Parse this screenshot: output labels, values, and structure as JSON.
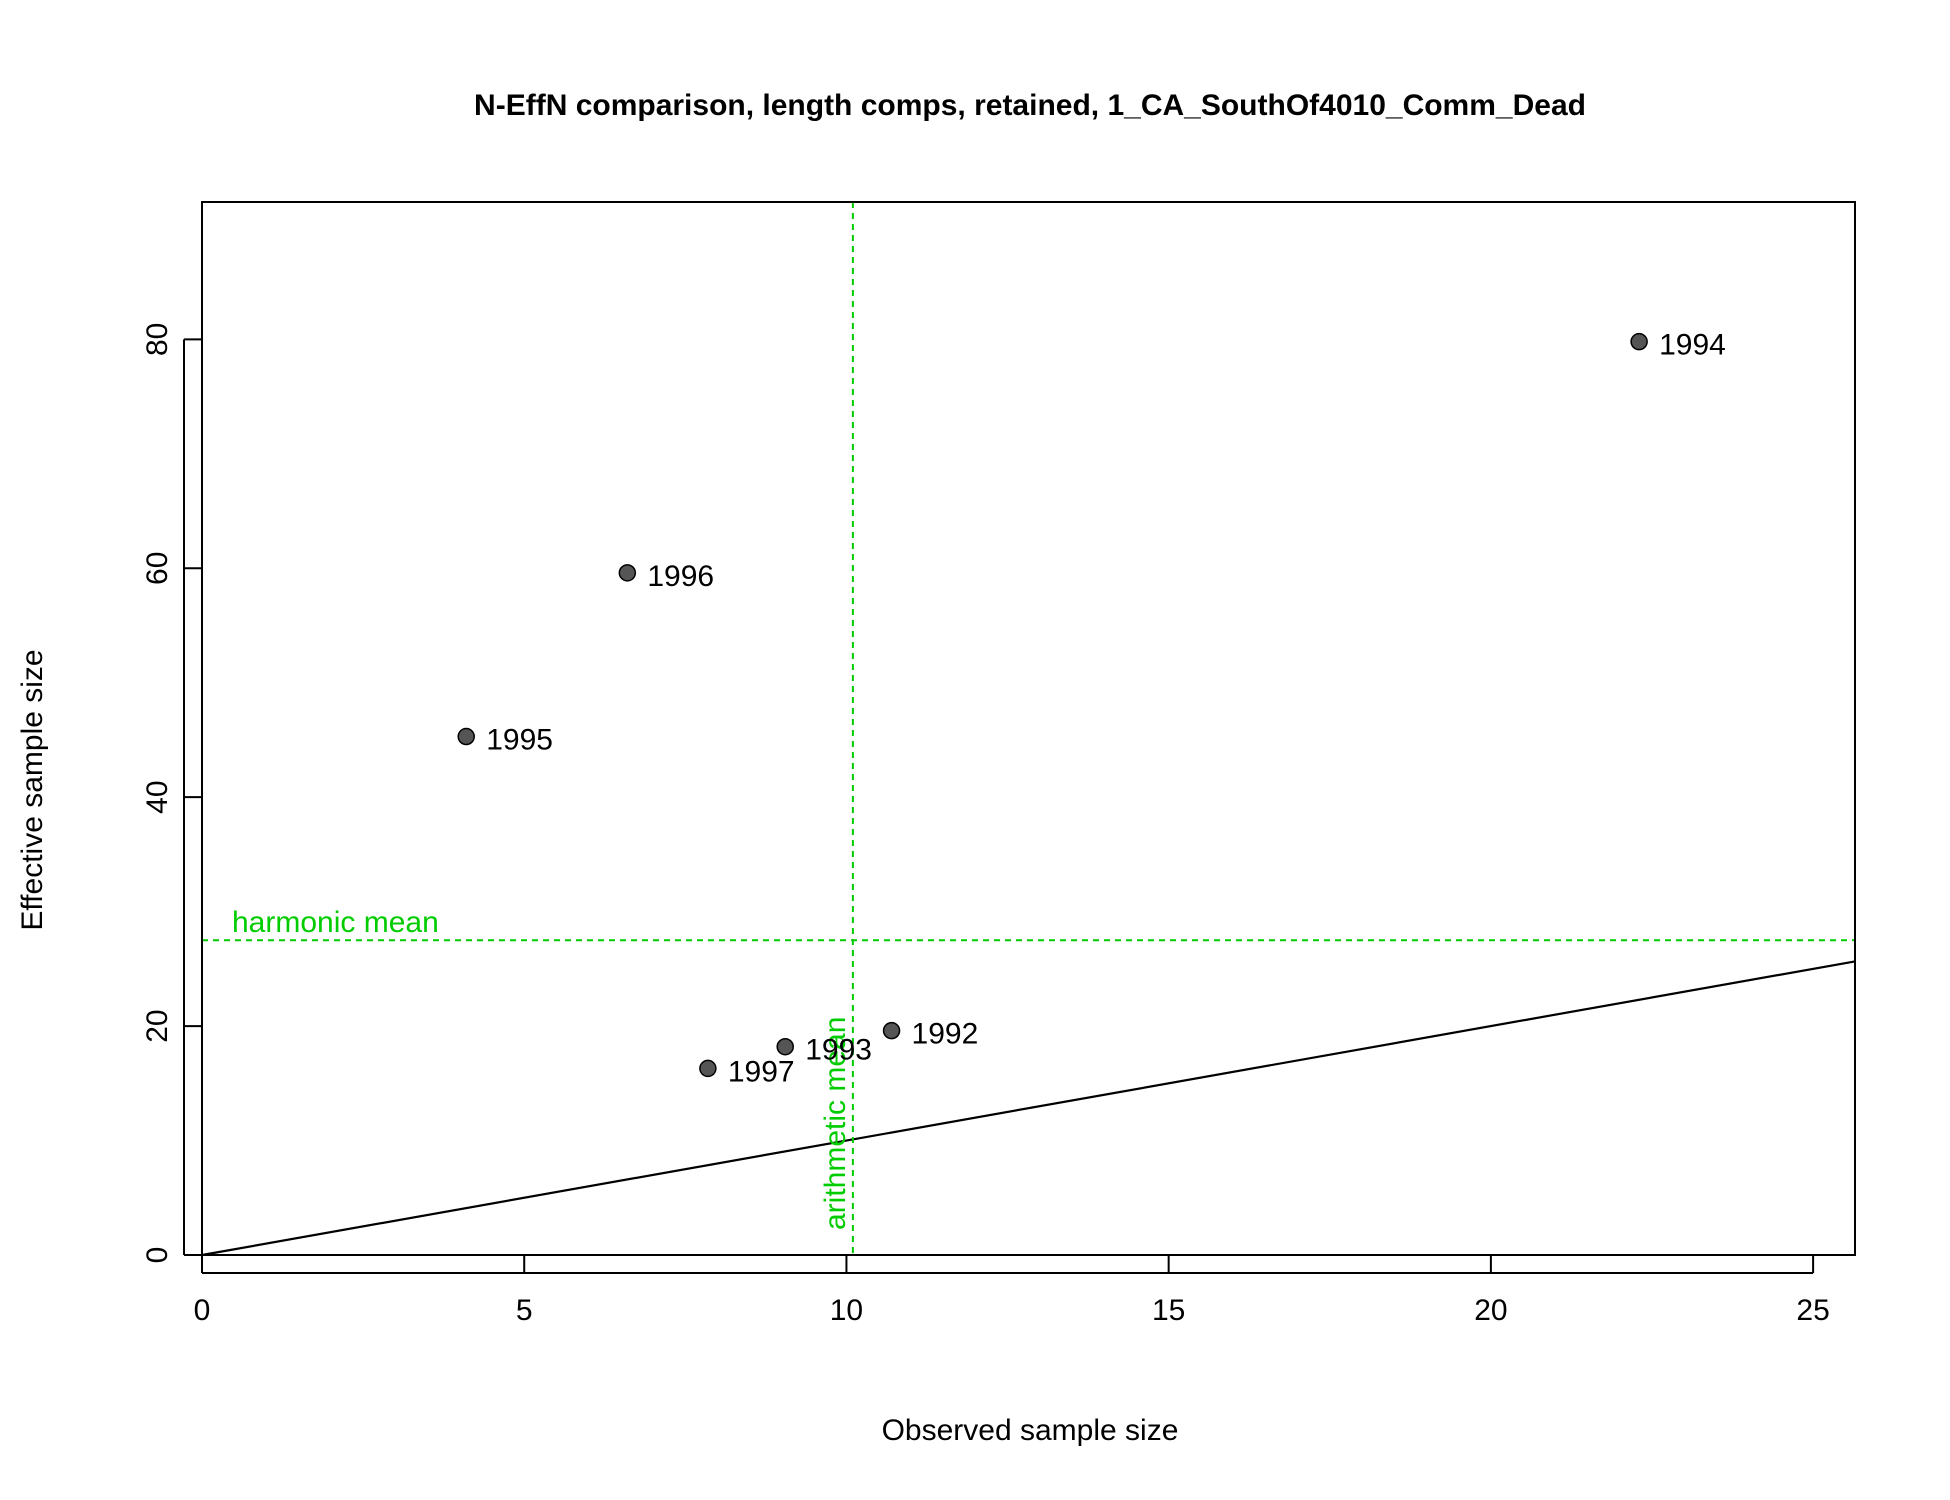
{
  "chart_data": {
    "type": "scatter",
    "title": "N-EffN comparison, length comps, retained, 1_CA_SouthOf4010_Comm_Dead",
    "xlabel": "Observed sample size",
    "ylabel": "Effective sample size",
    "xlim": [
      0,
      25.65
    ],
    "ylim": [
      0,
      92
    ],
    "x_ticks": [
      0,
      5,
      10,
      15,
      20,
      25
    ],
    "y_ticks": [
      0,
      20,
      40,
      60,
      80
    ],
    "points": [
      {
        "label": "1992",
        "x": 10.7,
        "y": 19.6
      },
      {
        "label": "1993",
        "x": 9.05,
        "y": 18.2
      },
      {
        "label": "1994",
        "x": 22.3,
        "y": 79.8
      },
      {
        "label": "1995",
        "x": 4.1,
        "y": 45.3
      },
      {
        "label": "1996",
        "x": 6.6,
        "y": 59.6
      },
      {
        "label": "1997",
        "x": 7.85,
        "y": 16.3
      }
    ],
    "reference_line": {
      "type": "identity",
      "slope": 1,
      "intercept": 0
    },
    "harmonic_mean": {
      "label": "harmonic mean",
      "y": 27.5
    },
    "arithmetic_mean": {
      "label": "arithmetic mean",
      "x": 10.1
    },
    "colors": {
      "points": "#555555",
      "point_outline": "#000000",
      "means": "#00cc00",
      "line": "#000000"
    },
    "grid": false,
    "legend": "none"
  }
}
